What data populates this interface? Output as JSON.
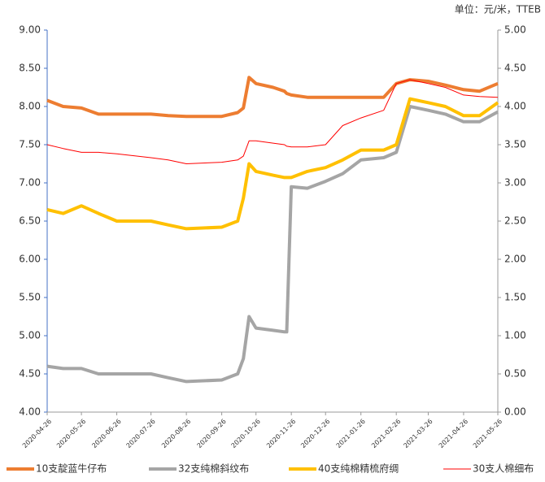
{
  "chart_data": {
    "type": "line",
    "unit_note": "单位：元/米，TTEB",
    "x": [
      "2020-04-26",
      "2020-05-10",
      "2020-05-26",
      "2020-06-10",
      "2020-06-26",
      "2020-07-26",
      "2020-08-10",
      "2020-08-26",
      "2020-09-26",
      "2020-10-10",
      "2020-10-15",
      "2020-10-20",
      "2020-10-26",
      "2020-11-10",
      "2020-11-20",
      "2020-11-22",
      "2020-11-26",
      "2020-12-10",
      "2020-12-26",
      "2021-01-10",
      "2021-01-26",
      "2021-02-15",
      "2021-02-26",
      "2021-03-10",
      "2021-03-26",
      "2021-04-10",
      "2021-04-26",
      "2021-05-10",
      "2021-05-26"
    ],
    "xlim": [
      "2020-04-26",
      "2021-05-26"
    ],
    "xticks": [
      "2020-04-26",
      "2020-05-26",
      "2020-06-26",
      "2020-07-26",
      "2020-08-26",
      "2020-09-26",
      "2020-10-26",
      "2020-11-26",
      "2020-12-26",
      "2021-01-26",
      "2021-02-26",
      "2021-03-26",
      "2021-04-26",
      "2021-05-26"
    ],
    "ylim": [
      4,
      9
    ],
    "yticks": [
      {
        "value": 4,
        "label": "4.00"
      },
      {
        "value": 4.5,
        "label": "4.50"
      },
      {
        "value": 5,
        "label": "5.00"
      },
      {
        "value": 5.5,
        "label": "5.50"
      },
      {
        "value": 6,
        "label": "6.00"
      },
      {
        "value": 6.5,
        "label": "6.50"
      },
      {
        "value": 7,
        "label": "7.00"
      },
      {
        "value": 7.5,
        "label": "7.50"
      },
      {
        "value": 8,
        "label": "8.00"
      },
      {
        "value": 8.5,
        "label": "8.50"
      },
      {
        "value": 9,
        "label": "9.00"
      }
    ],
    "y2lim": [
      0,
      5
    ],
    "y2ticks": [
      {
        "value": 0,
        "label": "0.00"
      },
      {
        "value": 0.5,
        "label": "0.50"
      },
      {
        "value": 1,
        "label": "1.00"
      },
      {
        "value": 1.5,
        "label": "1.50"
      },
      {
        "value": 2,
        "label": "2.00"
      },
      {
        "value": 2.5,
        "label": "2.50"
      },
      {
        "value": 3,
        "label": "3.00"
      },
      {
        "value": 3.5,
        "label": "3.50"
      },
      {
        "value": 4,
        "label": "4.00"
      },
      {
        "value": 4.5,
        "label": "4.50"
      },
      {
        "value": 5,
        "label": "5.00"
      }
    ],
    "series": [
      {
        "name": "10支靛蓝牛仔布",
        "color": "#ed7d31",
        "width": 4,
        "values": [
          8.08,
          8.0,
          7.98,
          7.9,
          7.9,
          7.9,
          7.88,
          7.87,
          7.87,
          7.92,
          7.98,
          8.38,
          8.3,
          8.25,
          8.2,
          8.17,
          8.15,
          8.12,
          8.12,
          8.12,
          8.12,
          8.12,
          8.3,
          8.35,
          8.33,
          8.28,
          8.22,
          8.2,
          8.3
        ]
      },
      {
        "name": "32支纯棉斜纹布",
        "color": "#a5a5a5",
        "width": 4,
        "values": [
          4.6,
          4.57,
          4.57,
          4.5,
          4.5,
          4.5,
          4.45,
          4.4,
          4.42,
          4.5,
          4.7,
          5.25,
          5.1,
          5.07,
          5.05,
          5.05,
          6.95,
          6.93,
          7.02,
          7.12,
          7.3,
          7.33,
          7.4,
          8.0,
          7.95,
          7.9,
          7.8,
          7.8,
          7.93
        ]
      },
      {
        "name": "40支纯棉精梳府绸",
        "color": "#ffc000",
        "width": 4,
        "values": [
          6.65,
          6.6,
          6.7,
          6.6,
          6.5,
          6.5,
          6.45,
          6.4,
          6.42,
          6.5,
          6.8,
          7.25,
          7.15,
          7.1,
          7.07,
          7.07,
          7.07,
          7.15,
          7.2,
          7.3,
          7.43,
          7.43,
          7.5,
          8.1,
          8.05,
          8.0,
          7.88,
          7.88,
          8.05
        ]
      },
      {
        "name": "30支人棉细布",
        "color": "#ff0000",
        "width": 1,
        "axis": "y2",
        "values": [
          3.5,
          3.45,
          3.4,
          3.4,
          3.38,
          3.33,
          3.3,
          3.25,
          3.27,
          3.3,
          3.35,
          3.55,
          3.55,
          3.52,
          3.5,
          3.48,
          3.47,
          3.47,
          3.5,
          3.75,
          3.85,
          3.95,
          4.3,
          4.35,
          4.3,
          4.25,
          4.15,
          4.13,
          4.12
        ]
      }
    ]
  }
}
